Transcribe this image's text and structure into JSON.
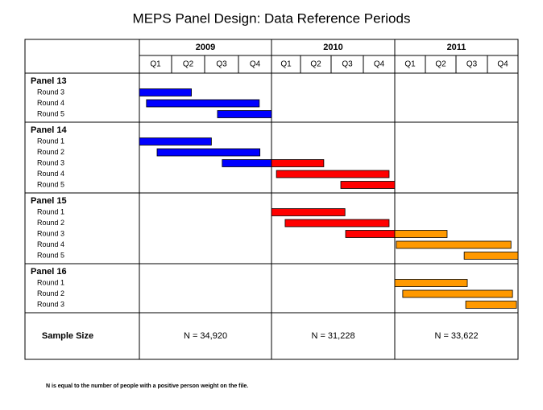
{
  "title": "MEPS Panel Design:  Data Reference Periods",
  "years": [
    {
      "label": "2009",
      "quarters": [
        "Q1",
        "Q2",
        "Q3",
        "Q4"
      ]
    },
    {
      "label": "2010",
      "quarters": [
        "Q1",
        "Q2",
        "Q3",
        "Q4"
      ]
    },
    {
      "label": "2011",
      "quarters": [
        "Q1",
        "Q2",
        "Q3",
        "Q4"
      ]
    }
  ],
  "panels": [
    {
      "label": "Panel 13",
      "rounds": [
        {
          "label": "Round 3",
          "segments": [
            {
              "start": 0,
              "end": 1.6,
              "color": "#0000ff"
            }
          ]
        },
        {
          "label": "Round 4",
          "segments": [
            {
              "start": 0.22,
              "end": 3.63,
              "color": "#0000ff"
            }
          ]
        },
        {
          "label": "Round 5",
          "segments": [
            {
              "start": 2.38,
              "end": 4,
              "color": "#0000ff"
            }
          ]
        }
      ]
    },
    {
      "label": "Panel 14",
      "rounds": [
        {
          "label": "Round 1",
          "segments": [
            {
              "start": 0,
              "end": 2.2,
              "color": "#0000ff"
            }
          ]
        },
        {
          "label": "Round 2",
          "segments": [
            {
              "start": 0.55,
              "end": 3.65,
              "color": "#0000ff"
            }
          ]
        },
        {
          "label": "Round 3",
          "segments": [
            {
              "start": 2.52,
              "end": 4,
              "color": "#0000ff"
            },
            {
              "start": 4,
              "end": 5.76,
              "color": "#ff0000"
            }
          ]
        },
        {
          "label": "Round 4",
          "segments": [
            {
              "start": 4.17,
              "end": 7.82,
              "color": "#ff0000"
            }
          ]
        },
        {
          "label": "Round 5",
          "segments": [
            {
              "start": 6.3,
              "end": 8,
              "color": "#ff0000"
            }
          ]
        }
      ]
    },
    {
      "label": "Panel 15",
      "rounds": [
        {
          "label": "Round 1",
          "segments": [
            {
              "start": 4,
              "end": 6.43,
              "color": "#ff0000"
            }
          ]
        },
        {
          "label": "Round 2",
          "segments": [
            {
              "start": 4.47,
              "end": 7.82,
              "color": "#ff0000"
            }
          ]
        },
        {
          "label": "Round 3",
          "segments": [
            {
              "start": 6.45,
              "end": 8,
              "color": "#ff0000"
            },
            {
              "start": 8,
              "end": 9.71,
              "color": "#ff9900"
            }
          ]
        },
        {
          "label": "Round 4",
          "segments": [
            {
              "start": 8.05,
              "end": 11.77,
              "color": "#ff9900"
            }
          ]
        },
        {
          "label": "Round 5",
          "segments": [
            {
              "start": 10.26,
              "end": 12,
              "color": "#ff9900"
            }
          ]
        }
      ]
    },
    {
      "label": "Panel 16",
      "rounds": [
        {
          "label": "Round 1",
          "segments": [
            {
              "start": 8,
              "end": 10.36,
              "color": "#ff9900"
            }
          ]
        },
        {
          "label": "Round 2",
          "segments": [
            {
              "start": 8.26,
              "end": 11.82,
              "color": "#ff9900"
            }
          ]
        },
        {
          "label": "Round 3",
          "segments": [
            {
              "start": 10.31,
              "end": 11.95,
              "color": "#ff9900"
            }
          ]
        }
      ]
    }
  ],
  "sample_size": {
    "label": "Sample Size",
    "values": [
      "N = 34,920",
      "N = 31,228",
      "N = 33,622"
    ]
  },
  "footnote": "N is equal to the number of people with a positive person weight on the file."
}
